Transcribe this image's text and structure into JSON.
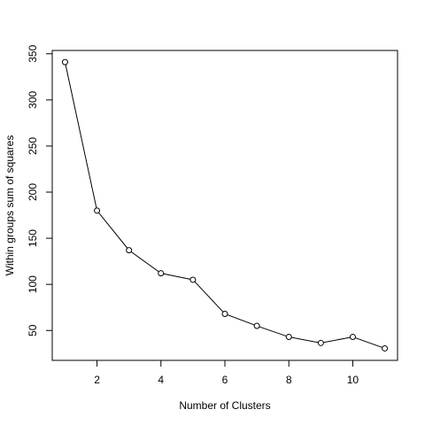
{
  "chart_data": {
    "type": "line",
    "x_label": "Number of Clusters",
    "y_label": "Within groups sum of squares",
    "x": [
      1,
      2,
      3,
      4,
      5,
      6,
      7,
      8,
      9,
      10,
      11
    ],
    "values": [
      341,
      180,
      137,
      112,
      105,
      68,
      55,
      43,
      36.5,
      43,
      30.6
    ],
    "color": "#000000",
    "xlim": [
      0.6,
      11.4
    ],
    "xticks": [
      2,
      4,
      6,
      8,
      10
    ],
    "ylim": [
      17.6,
      353.6
    ],
    "yticks": [
      50,
      100,
      150,
      200,
      250,
      300,
      350
    ],
    "grid": false
  }
}
